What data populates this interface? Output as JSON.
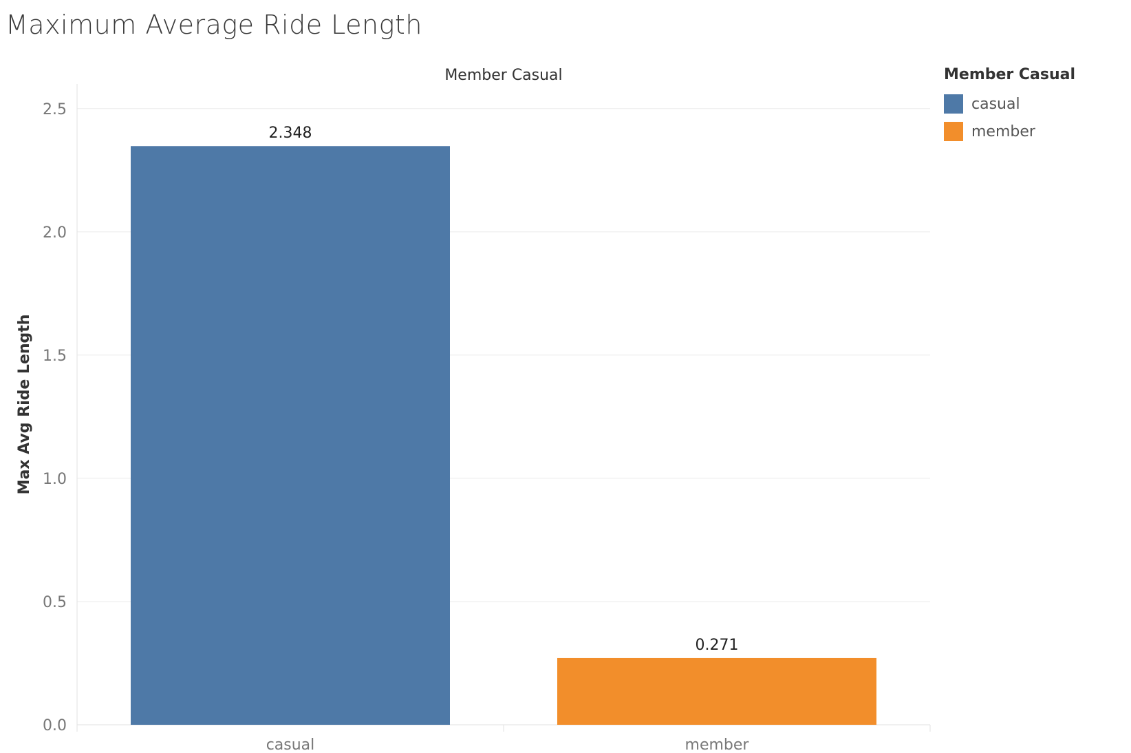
{
  "page": {
    "title": "Maximum Average Ride Length"
  },
  "chart_data": {
    "type": "bar",
    "title": "Maximum Average Ride Length",
    "header_label": "Member Casual",
    "xlabel": "",
    "ylabel": "Max Avg Ride Length",
    "categories": [
      "casual",
      "member"
    ],
    "values": [
      2.348,
      0.271
    ],
    "data_labels": [
      "2.348",
      "0.271"
    ],
    "colors": [
      "#4e79a7",
      "#f28e2b"
    ],
    "ylim": [
      0,
      2.6
    ],
    "yticks": [
      "0.0",
      "0.5",
      "1.0",
      "1.5",
      "2.0",
      "2.5"
    ],
    "ytick_values": [
      0,
      0.5,
      1.0,
      1.5,
      2.0,
      2.5
    ],
    "grid": true,
    "legend": {
      "position": "right",
      "title": "Member Casual",
      "items": [
        {
          "label": "casual",
          "color": "#4e79a7"
        },
        {
          "label": "member",
          "color": "#f28e2b"
        }
      ]
    }
  }
}
